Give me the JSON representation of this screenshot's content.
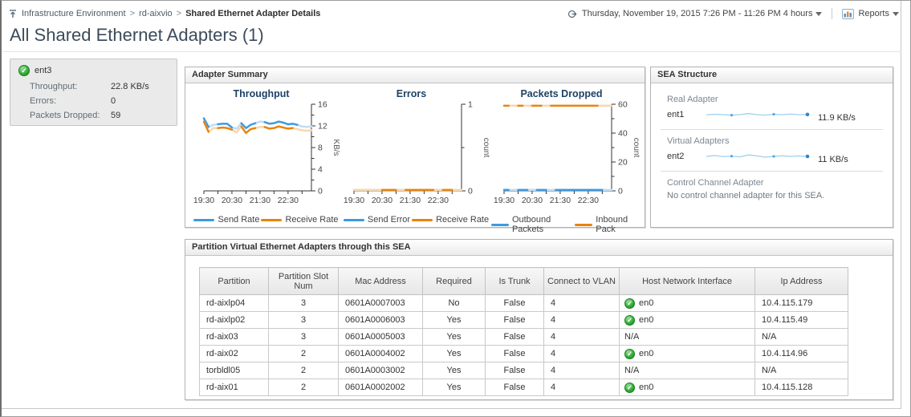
{
  "header": {
    "breadcrumb": [
      "Infrastructure Environment",
      "rd-aixvio",
      "Shared Ethernet Adapter Details"
    ],
    "timerange": "Thursday, November 19, 2015 7:26 PM - 11:26 PM 4 hours",
    "reports_label": "Reports",
    "page_title": "All Shared Ethernet Adapters (1)"
  },
  "adapter_tile": {
    "name": "ent3",
    "metrics": [
      {
        "label": "Throughput:",
        "value": "22.8 KB/s"
      },
      {
        "label": "Errors:",
        "value": "0"
      },
      {
        "label": "Packets Dropped:",
        "value": "59"
      }
    ]
  },
  "adapter_summary": {
    "title": "Adapter Summary"
  },
  "chart_data": [
    {
      "type": "line",
      "title": "Throughput",
      "ylabel": "KB/s",
      "ylim": [
        0,
        16
      ],
      "yticks": [
        0,
        4,
        8,
        12,
        16
      ],
      "yticks_minor": [
        2,
        6,
        10,
        14
      ],
      "x_range_min": [
        0,
        230
      ],
      "xticks_min": [
        0,
        30,
        60,
        90,
        120,
        150,
        180,
        210
      ],
      "xtick_labels": [
        {
          "m": 0,
          "t": "19:30"
        },
        {
          "m": 60,
          "t": "20:30"
        },
        {
          "m": 120,
          "t": "21:30"
        },
        {
          "m": 180,
          "t": "22:30"
        }
      ],
      "x_step_min": 10,
      "series": [
        {
          "name": "Send Rate",
          "color": "#3d9ade",
          "light": "#c3def2",
          "values": [
            13.4,
            11.8,
            12.2,
            12.3,
            12.4,
            12.4,
            11.7,
            11.5,
            12.5,
            11.6,
            12.2,
            12.5,
            12.8,
            12.7,
            12.4,
            12.5,
            12.8,
            12.6,
            12.3,
            12.4,
            12.2,
            11.9,
            11.8,
            11.9
          ],
          "gaps": [
            [
              10,
              25
            ],
            [
              60,
              80
            ],
            [
              115,
              130
            ],
            [
              200,
              230
            ]
          ]
        },
        {
          "name": "Receive Rate",
          "color": "#e8830e",
          "light": "#f6d8b2",
          "values": [
            12.8,
            10.9,
            11.6,
            11.6,
            11.7,
            11.6,
            11.3,
            10.8,
            11.9,
            10.7,
            11.4,
            11.6,
            11.8,
            11.8,
            11.5,
            11.6,
            11.9,
            11.7,
            11.5,
            11.6,
            11.4,
            11.2,
            11.1,
            11.2
          ],
          "gaps": [
            [
              10,
              25
            ],
            [
              60,
              80
            ],
            [
              115,
              130
            ],
            [
              195,
              230
            ]
          ]
        }
      ]
    },
    {
      "type": "line",
      "title": "Errors",
      "ylabel": "count",
      "ylim": [
        0,
        1
      ],
      "yticks": [
        0,
        1
      ],
      "yticks_minor": [
        0.5
      ],
      "x_range_min": [
        0,
        230
      ],
      "xticks_min": [
        0,
        30,
        60,
        90,
        120,
        150,
        180,
        210
      ],
      "xtick_labels": [
        {
          "m": 0,
          "t": "19:30"
        },
        {
          "m": 60,
          "t": "20:30"
        },
        {
          "m": 120,
          "t": "21:30"
        },
        {
          "m": 180,
          "t": "22:30"
        }
      ],
      "x_step_min": 10,
      "series": [
        {
          "name": "Send Error",
          "color": "#3d9ade",
          "light": "#c3def2",
          "values": [
            0,
            0,
            0,
            0,
            0,
            0,
            0,
            0,
            0,
            0,
            0,
            0,
            0,
            0,
            0,
            0,
            0,
            0,
            0,
            0,
            0,
            0,
            0,
            0
          ],
          "gaps": [
            [
              0,
              55
            ],
            [
              70,
              135
            ],
            [
              150,
              230
            ]
          ]
        },
        {
          "name": "Receive Rate",
          "color": "#e8830e",
          "light": "#f6d8b2",
          "values": [
            0,
            0,
            0,
            0,
            0,
            0,
            0,
            0,
            0,
            0,
            0,
            0,
            0,
            0,
            0,
            0,
            0,
            0,
            0,
            0,
            0,
            0,
            0,
            0
          ],
          "gaps": [
            [
              8,
              28
            ],
            [
              36,
              55
            ],
            [
              90,
              105
            ],
            [
              175,
              190
            ],
            [
              215,
              230
            ]
          ]
        }
      ]
    },
    {
      "type": "line",
      "title": "Packets Dropped",
      "ylabel": "count",
      "ylim": [
        0,
        60
      ],
      "yticks": [
        0,
        20,
        40,
        60
      ],
      "yticks_minor": [
        10,
        30,
        50
      ],
      "x_range_min": [
        0,
        230
      ],
      "xticks_min": [
        0,
        30,
        60,
        90,
        120,
        150,
        180,
        210
      ],
      "xtick_labels": [
        {
          "m": 0,
          "t": "19:30"
        },
        {
          "m": 60,
          "t": "20:30"
        },
        {
          "m": 120,
          "t": "21:30"
        },
        {
          "m": 180,
          "t": "22:30"
        }
      ],
      "x_step_min": 10,
      "series": [
        {
          "name": "Outbound Packets",
          "color": "#3d9ade",
          "light": "#c3def2",
          "values": [
            0,
            0,
            0,
            0,
            0,
            0,
            0,
            0,
            0,
            0,
            0,
            0,
            0,
            0,
            0,
            0,
            0,
            0,
            0,
            0,
            0,
            0,
            0,
            0
          ],
          "gaps": [
            [
              15,
              30
            ],
            [
              50,
              62
            ],
            [
              90,
              102
            ],
            [
              210,
              230
            ]
          ]
        },
        {
          "name": "Inbound Pack",
          "color": "#e8830e",
          "light": "#f6d8b2",
          "values": [
            59,
            59,
            59,
            59,
            59,
            59,
            59,
            59,
            59,
            59,
            59,
            59,
            59,
            59,
            59,
            59,
            59,
            59,
            59,
            59,
            59,
            59,
            59,
            59
          ],
          "gaps": [
            [
              12,
              25
            ],
            [
              45,
              58
            ],
            [
              85,
              100
            ],
            [
              205,
              230
            ]
          ]
        }
      ]
    }
  ],
  "sea_structure": {
    "title": "SEA Structure",
    "sections": [
      {
        "label": "Real Adapter",
        "name": "ent1",
        "value": "11.9 KB/s",
        "spark": [
          0.52,
          0.46,
          0.5,
          0.55,
          0.5,
          0.38,
          0.5,
          0.55,
          0.46,
          0.5,
          0.44,
          0.5,
          0.48
        ]
      },
      {
        "label": "Virtual Adapters",
        "name": "ent2",
        "value": "11 KB/s",
        "spark": [
          0.5,
          0.42,
          0.52,
          0.48,
          0.55,
          0.35,
          0.45,
          0.58,
          0.5,
          0.44,
          0.5,
          0.46,
          0.5
        ]
      },
      {
        "label": "Control Channel Adapter",
        "note": "No control channel adapter for this SEA."
      }
    ]
  },
  "partition_table": {
    "title": "Partition Virtual Ethernet Adapters through this SEA",
    "columns": [
      "Partition",
      "Partition Slot Num",
      "Mac Address",
      "Required",
      "Is Trunk",
      "Connect to VLAN",
      "Host Network Interface",
      "Ip Address"
    ],
    "rows": [
      {
        "partition": "rd-aixlp04",
        "slot": "3",
        "mac": "0601A0007003",
        "required": "No",
        "is_trunk": "False",
        "vlan": "4",
        "host_if": "en0",
        "host_if_ok": true,
        "ip": "10.4.115.179"
      },
      {
        "partition": "rd-aixlp02",
        "slot": "3",
        "mac": "0601A0006003",
        "required": "Yes",
        "is_trunk": "False",
        "vlan": "4",
        "host_if": "en0",
        "host_if_ok": true,
        "ip": "10.4.115.49"
      },
      {
        "partition": "rd-aix03",
        "slot": "3",
        "mac": "0601A0005003",
        "required": "Yes",
        "is_trunk": "False",
        "vlan": "4",
        "host_if": "N/A",
        "host_if_ok": false,
        "ip": "N/A"
      },
      {
        "partition": "rd-aix02",
        "slot": "2",
        "mac": "0601A0004002",
        "required": "Yes",
        "is_trunk": "False",
        "vlan": "4",
        "host_if": "en0",
        "host_if_ok": true,
        "ip": "10.4.114.96"
      },
      {
        "partition": "torbldl05",
        "slot": "2",
        "mac": "0601A0003002",
        "required": "Yes",
        "is_trunk": "False",
        "vlan": "4",
        "host_if": "N/A",
        "host_if_ok": false,
        "ip": "N/A"
      },
      {
        "partition": "rd-aix01",
        "slot": "2",
        "mac": "0601A0002002",
        "required": "Yes",
        "is_trunk": "False",
        "vlan": "4",
        "host_if": "en0",
        "host_if_ok": true,
        "ip": "10.4.115.128"
      }
    ]
  },
  "colors": {
    "accent_blue_line": "#3d9ade",
    "accent_orange_line": "#e8830e",
    "status_green": "#2fa832",
    "title_text": "#3d4b5c"
  }
}
